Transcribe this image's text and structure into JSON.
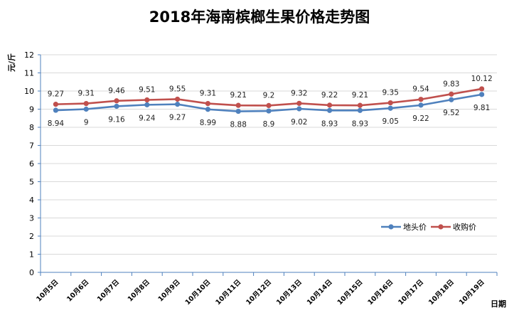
{
  "chart_data": {
    "type": "line",
    "title": "2018年海南槟榔生果价格走势图",
    "ylabel": "元/斤",
    "xlabel": "日期",
    "ylim": [
      0,
      12
    ],
    "yticks": [
      0,
      1,
      2,
      3,
      4,
      5,
      6,
      7,
      8,
      9,
      10,
      11,
      12
    ],
    "grid": true,
    "legend_position": "right",
    "categories": [
      "10月5日",
      "10月6日",
      "10月7日",
      "10月8日",
      "10月9日",
      "10月10日",
      "10月11日",
      "10月12日",
      "10月13日",
      "10月14日",
      "10月15日",
      "10月16日",
      "10月17日",
      "10月18日",
      "10月19日"
    ],
    "series": [
      {
        "name": "地头价",
        "color": "#4f81bd",
        "values": [
          8.94,
          9,
          9.16,
          9.24,
          9.27,
          8.99,
          8.88,
          8.9,
          9.02,
          8.93,
          8.93,
          9.05,
          9.22,
          9.52,
          9.81
        ],
        "labels": [
          "8.94",
          "9",
          "9.16",
          "9.24",
          "9.27",
          "8.99",
          "8.88",
          "8.9",
          "9.02",
          "8.93",
          "8.93",
          "9.05",
          "9.22",
          "9.52",
          "9.81"
        ]
      },
      {
        "name": "收购价",
        "color": "#c0504d",
        "values": [
          9.27,
          9.31,
          9.46,
          9.51,
          9.55,
          9.31,
          9.21,
          9.2,
          9.32,
          9.22,
          9.21,
          9.35,
          9.54,
          9.83,
          10.12
        ],
        "labels": [
          "9.27",
          "9.31",
          "9.46",
          "9.51",
          "9.55",
          "9.31",
          "9.21",
          "9.2",
          "9.32",
          "9.22",
          "9.21",
          "9.35",
          "9.54",
          "9.83",
          "10.12"
        ]
      }
    ],
    "colors": {
      "axis": "#4f81bd",
      "grid": "#d9d9d9"
    }
  }
}
